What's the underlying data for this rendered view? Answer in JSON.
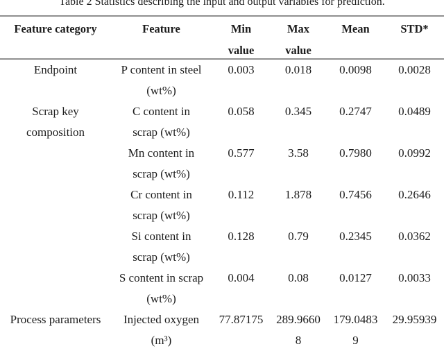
{
  "title": "Table 2 Statistics describing the input and output variables for prediction.",
  "colors": {
    "background": "#ffffff",
    "text": "#1c1c1c",
    "rule": "#8f8f8f"
  },
  "table": {
    "headers": {
      "category": [
        "Feature category"
      ],
      "feature": [
        "Feature"
      ],
      "min": [
        "Min",
        "value"
      ],
      "max": [
        "Max",
        "value"
      ],
      "mean": [
        "Mean"
      ],
      "std": [
        "STD*"
      ]
    },
    "rows": [
      {
        "category": [
          "Endpoint",
          ""
        ],
        "feature": [
          "P content in steel",
          "(wt%)"
        ],
        "min": [
          "0.003",
          ""
        ],
        "max": [
          "0.018",
          ""
        ],
        "mean": [
          "0.0098",
          ""
        ],
        "std": [
          "0.0028",
          ""
        ]
      },
      {
        "category": [
          "Scrap key",
          "composition"
        ],
        "feature": [
          "C content in",
          "scrap (wt%)"
        ],
        "min": [
          "0.058",
          ""
        ],
        "max": [
          "0.345",
          ""
        ],
        "mean": [
          "0.2747",
          ""
        ],
        "std": [
          "0.0489",
          ""
        ]
      },
      {
        "category": [
          "",
          ""
        ],
        "feature": [
          "Mn content in",
          "scrap (wt%)"
        ],
        "min": [
          "0.577",
          ""
        ],
        "max": [
          "3.58",
          ""
        ],
        "mean": [
          "0.7980",
          ""
        ],
        "std": [
          "0.0992",
          ""
        ]
      },
      {
        "category": [
          "",
          ""
        ],
        "feature": [
          "Cr content in",
          "scrap (wt%)"
        ],
        "min": [
          "0.112",
          ""
        ],
        "max": [
          "1.878",
          ""
        ],
        "mean": [
          "0.7456",
          ""
        ],
        "std": [
          "0.2646",
          ""
        ]
      },
      {
        "category": [
          "",
          ""
        ],
        "feature": [
          "Si content in",
          "scrap (wt%)"
        ],
        "min": [
          "0.128",
          ""
        ],
        "max": [
          "0.79",
          ""
        ],
        "mean": [
          "0.2345",
          ""
        ],
        "std": [
          "0.0362",
          ""
        ]
      },
      {
        "category": [
          "",
          ""
        ],
        "feature": [
          "S content in scrap",
          "(wt%)"
        ],
        "min": [
          "0.004",
          ""
        ],
        "max": [
          "0.08",
          ""
        ],
        "mean": [
          "0.0127",
          ""
        ],
        "std": [
          "0.0033",
          ""
        ]
      },
      {
        "category": [
          "Process parameters",
          ""
        ],
        "feature": [
          "Injected oxygen",
          "(m³)"
        ],
        "min": [
          "77.87175",
          ""
        ],
        "max": [
          "289.9660",
          "8"
        ],
        "mean": [
          "179.0483",
          "9"
        ],
        "std": [
          "29.95939",
          ""
        ]
      }
    ]
  }
}
